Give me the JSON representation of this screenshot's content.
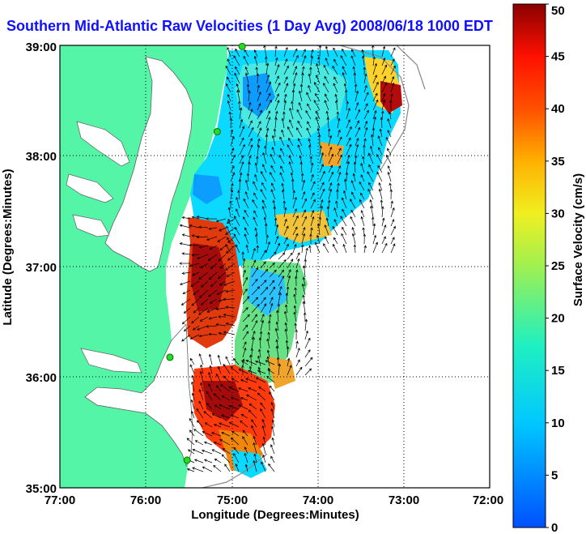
{
  "title": "Southern Mid-Atlantic Raw Velocities (1 Day Avg) 2008/06/18 1000 EDT",
  "xlabel": "Longitude (Degrees:Minutes)",
  "ylabel": "Latitude (Degrees:Minutes)",
  "x_ticks": [
    "77:00",
    "76:00",
    "75:00",
    "74:00",
    "73:00",
    "72:00"
  ],
  "y_ticks": [
    "39:00",
    "38:00",
    "37:00",
    "36:00",
    "35:00"
  ],
  "colorbar": {
    "label": "Surface Velocity (cm/s)",
    "ticks": [
      "0",
      "5",
      "10",
      "15",
      "20",
      "25",
      "30",
      "35",
      "40",
      "45",
      "50"
    ],
    "min": 0,
    "max": 50
  },
  "colors": {
    "land": "#55f5a8",
    "water": "#ffffff",
    "title": "#1010ff",
    "station": "#22dd22"
  },
  "map_extent": {
    "lon": [
      -77,
      -72
    ],
    "lat": [
      35,
      39
    ]
  },
  "stations": [
    {
      "lon": -74.88,
      "lat": 38.99
    },
    {
      "lon": -75.17,
      "lat": 38.22
    },
    {
      "lon": -75.72,
      "lat": 36.18
    },
    {
      "lon": -75.52,
      "lat": 35.25
    }
  ]
}
